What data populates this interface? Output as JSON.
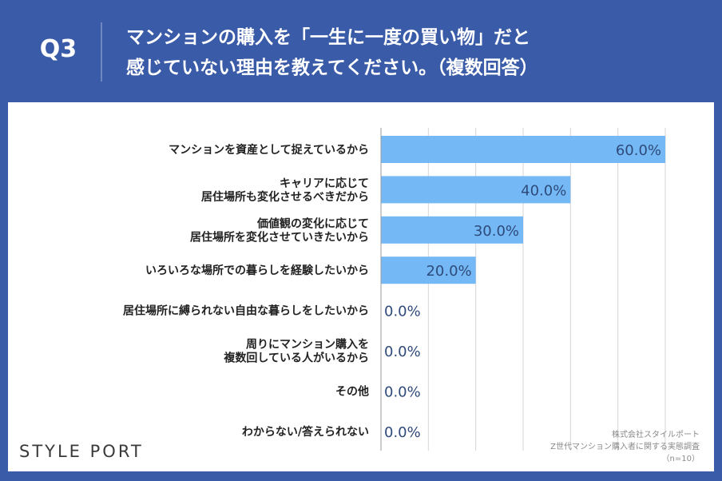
{
  "header": {
    "question_number": "Q3",
    "title_line1": "マンションの購入を「一生に一度の買い物」だと",
    "title_line2": "感じていない理由を教えてください。（複数回答）"
  },
  "logo": "STYLE PORT",
  "source": {
    "line1": "株式会社スタイルポート",
    "line2": "Z世代マンション購入者に関する実態調査",
    "line3": "（n=10）"
  },
  "colors": {
    "background": "#3A5BA7",
    "bar": "#74B9F5",
    "value_text": "#2E4A7A"
  },
  "chart_data": {
    "type": "bar",
    "orientation": "horizontal",
    "categories": [
      [
        "マンションを資産として捉えているから"
      ],
      [
        "キャリアに応じて",
        "居住場所も変化させるべきだから"
      ],
      [
        "価値観の変化に応じて",
        "居住場所を変化させていきたいから"
      ],
      [
        "いろいろな場所での暮らしを経験したいから"
      ],
      [
        "居住場所に縛られない自由な暮らしをしたいから"
      ],
      [
        "周りにマンション購入を",
        "複数回している人がいるから"
      ],
      [
        "その他"
      ],
      [
        "わからない/答えられない"
      ]
    ],
    "values": [
      60.0,
      40.0,
      30.0,
      20.0,
      0.0,
      0.0,
      0.0,
      0.0
    ],
    "value_labels": [
      "60.0%",
      "40.0%",
      "30.0%",
      "20.0%",
      "0.0%",
      "0.0%",
      "0.0%",
      "0.0%"
    ],
    "xlim": [
      0,
      60
    ],
    "gridlines": true
  }
}
